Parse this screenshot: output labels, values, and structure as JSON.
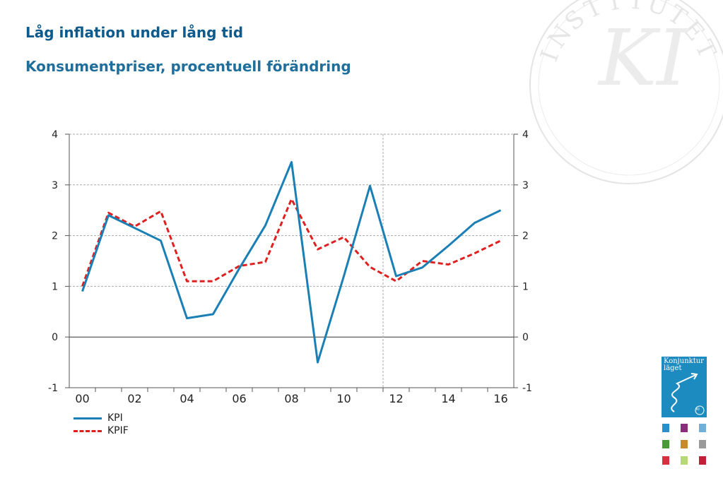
{
  "header": {
    "title": "Låg inflation under lång tid",
    "subtitle": "Konsumentpriser, procentuell förändring"
  },
  "chart_data": {
    "type": "line",
    "title": "Låg inflation under lång tid",
    "subtitle": "Konsumentpriser, procentuell förändring",
    "x": [
      2000,
      2001,
      2002,
      2003,
      2004,
      2005,
      2006,
      2007,
      2008,
      2009,
      2010,
      2011,
      2012,
      2013,
      2014,
      2015,
      2016
    ],
    "x_tick_labels": [
      "00",
      "02",
      "04",
      "06",
      "08",
      "10",
      "12",
      "14",
      "16"
    ],
    "y_ticks": [
      -1,
      0,
      1,
      2,
      3,
      4
    ],
    "ylim": [
      -1,
      4
    ],
    "xlim": [
      1999.5,
      2016.5
    ],
    "grid": true,
    "secondary_y_axis": true,
    "forecast_divider_x": 2011.5,
    "legend_position": "bottom-left",
    "series": [
      {
        "name": "KPI",
        "color": "#1a7fb5",
        "style": "solid",
        "values": [
          0.9,
          2.4,
          2.15,
          1.9,
          0.37,
          0.45,
          1.35,
          2.2,
          3.45,
          -0.5,
          1.2,
          2.98,
          1.2,
          1.37,
          1.8,
          2.25,
          2.5
        ]
      },
      {
        "name": "KPIF",
        "color": "#e02020",
        "style": "dashed",
        "values": [
          1.0,
          2.45,
          2.18,
          2.48,
          1.1,
          1.1,
          1.4,
          1.48,
          2.72,
          1.73,
          1.97,
          1.38,
          1.1,
          1.5,
          1.43,
          1.65,
          1.9
        ]
      }
    ]
  },
  "colors": {
    "title": "#0d5a8c",
    "subtitle": "#1f6e9c",
    "grid": "#aaaaaa",
    "axis": "#555555"
  },
  "seal": {
    "letters": [
      "I",
      "N",
      "S",
      "T",
      "I",
      "T",
      "U",
      "T",
      "E",
      "T"
    ],
    "monogram": "KI"
  },
  "cover": {
    "title_line1": "Konjunktur",
    "title_line2": "läget",
    "badge": "KI"
  },
  "swatches": [
    "#2a8fc8",
    "#8a2d7a",
    "#6fb0d8",
    "#4a9a3a",
    "#c9892a",
    "#9a9a9a",
    "#d83040",
    "#b8d878",
    "#c02038"
  ]
}
